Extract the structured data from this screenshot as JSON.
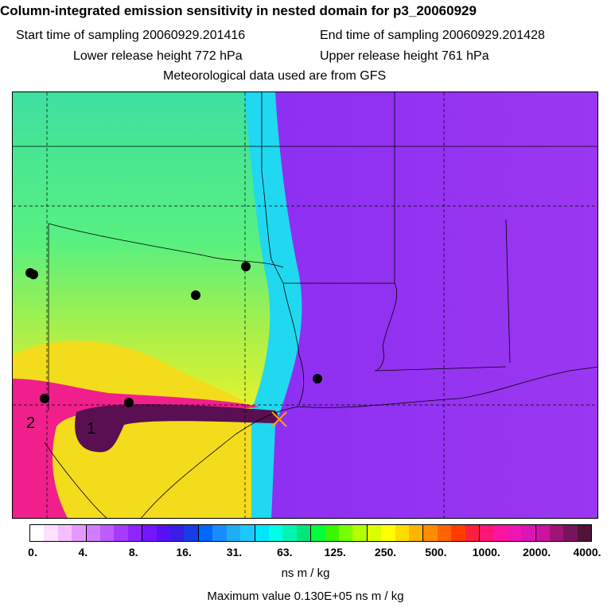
{
  "header": {
    "title": "Column-integrated emission sensitivity in nested domain for p3_20060929",
    "start_time": "Start time of sampling 20060929.201416",
    "end_time": "End time of sampling 20060929.201428",
    "lower_release": "Lower release height  772 hPa",
    "upper_release": "Upper release height  761 hPa",
    "met_data": "Meteorological data used are from GFS"
  },
  "map": {
    "region_labels": [
      "1",
      "2"
    ],
    "colors": {
      "purple_field": "#9c33f0",
      "cyan_band": "#00f0f0",
      "green_field": "#48f06c",
      "yellow_field": "#f4f224",
      "magenta_band": "#f01f8c",
      "plume_dark": "#5a0f52",
      "release_marker": "#ffa000"
    }
  },
  "colorbar": {
    "colors": [
      "#ffffff",
      "#ffe0ff",
      "#f5bfff",
      "#e59aff",
      "#d27cff",
      "#be5cff",
      "#a63bff",
      "#8f24ff",
      "#7416ff",
      "#5a10f5",
      "#3a1ee6",
      "#1a3ce6",
      "#0066ff",
      "#1b8cff",
      "#1eaff0",
      "#1ec8ff",
      "#00e6ff",
      "#00ffe6",
      "#00f5b4",
      "#00e67a",
      "#00ff3c",
      "#3cf500",
      "#78ff00",
      "#b4ff00",
      "#dcff00",
      "#ffff00",
      "#ffdc00",
      "#ffb400",
      "#ff8c00",
      "#ff6400",
      "#ff3c00",
      "#ff1e3c",
      "#ff1478",
      "#ff14a0",
      "#f014b4",
      "#dc14b4",
      "#c814a0",
      "#a01478",
      "#78145a",
      "#501437"
    ],
    "tick_labels": [
      "0.",
      "4.",
      "8.",
      "16.",
      "31.",
      "63.",
      "125.",
      "250.",
      "500.",
      "1000.",
      "2000.",
      "4000."
    ],
    "units": "ns m / kg"
  },
  "footer": {
    "max_value": "Maximum value  0.130E+05 ns m / kg"
  }
}
